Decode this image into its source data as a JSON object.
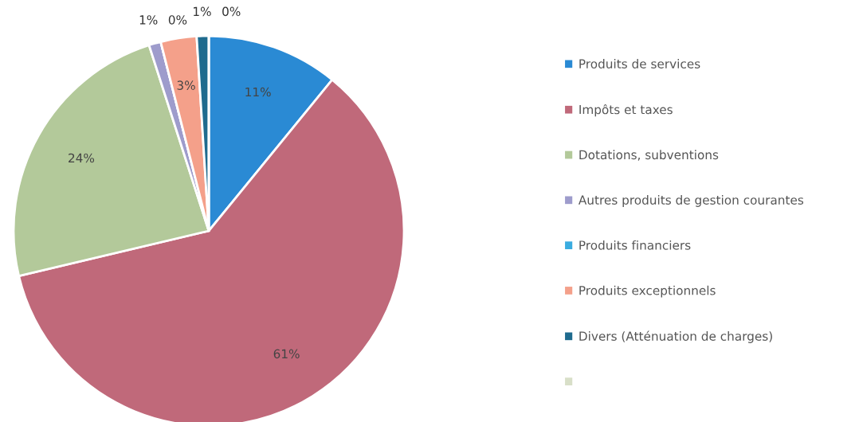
{
  "chart_data": {
    "type": "pie",
    "categories": [
      "Produits de services",
      "Impôts et taxes",
      "Dotations, subventions",
      "Autres produits de gestion courantes",
      "Produits financiers",
      "Produits exceptionnels",
      "Divers (Atténuation de charges)",
      null
    ],
    "values": [
      11,
      61,
      24,
      1,
      0,
      3,
      1,
      0
    ],
    "value_labels": [
      "11%",
      "61%",
      "24%",
      "1%",
      "0%",
      "3%",
      "1%",
      "0%"
    ],
    "colors": [
      "#2a8ad4",
      "#c0697a",
      "#b3c99a",
      "#9e9ccc",
      "#3aace0",
      "#f4a08a",
      "#1f6b8e",
      "#d8dfc8"
    ],
    "legend": "right"
  }
}
